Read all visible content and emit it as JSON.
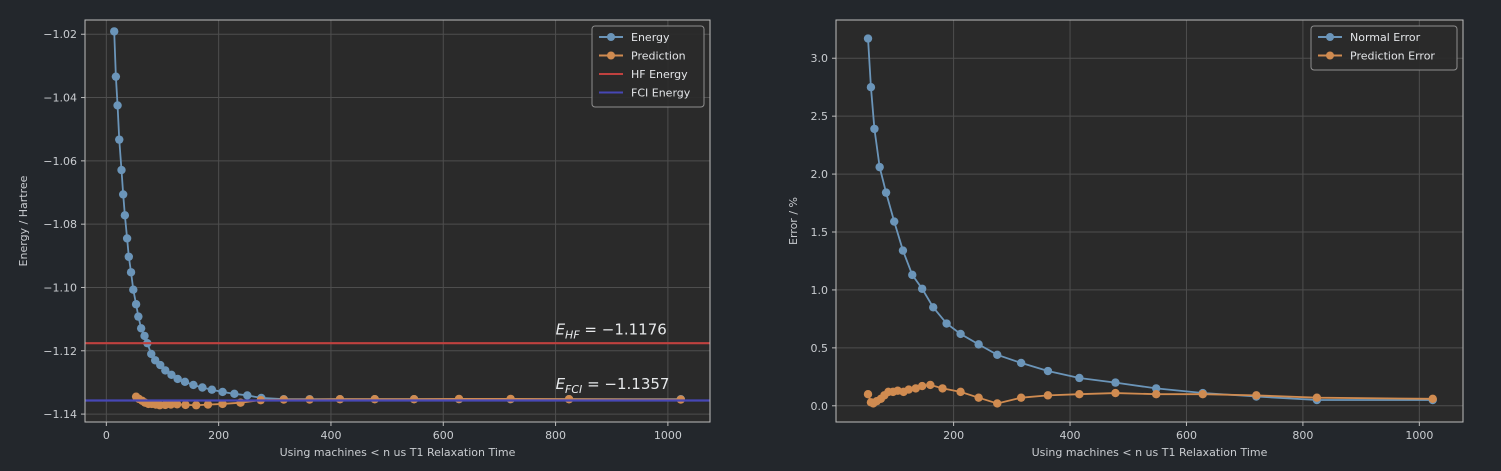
{
  "chart_data": [
    {
      "type": "line",
      "xlabel": "Using machines < n us T1 Relaxation Time",
      "ylabel": "Energy / Hartree",
      "xlim": [
        -38,
        1075
      ],
      "ylim": [
        -1.1425,
        -1.0155
      ],
      "xticks": [
        0,
        200,
        400,
        600,
        800,
        1000
      ],
      "xtick_labels": [
        "0",
        "200",
        "400",
        "600",
        "800",
        "1000"
      ],
      "yticks": [
        -1.14,
        -1.12,
        -1.1,
        -1.08,
        -1.06,
        -1.04,
        -1.02
      ],
      "ytick_labels": [
        "−1.14",
        "−1.12",
        "−1.10",
        "−1.08",
        "−1.06",
        "−1.04",
        "−1.02"
      ],
      "grid": true,
      "legend_position": "top-right",
      "series": [
        {
          "name": "Energy",
          "color": "#6b95b9",
          "marker": true,
          "x": [
            14,
            17,
            20,
            23,
            27,
            30,
            33,
            37,
            40,
            44,
            48,
            53,
            57,
            62,
            68,
            73,
            80,
            87,
            96,
            105,
            116,
            127,
            140,
            155,
            171,
            188,
            207,
            228,
            251,
            276,
            316,
            362,
            416,
            478,
            548,
            628,
            720,
            824,
            1023
          ],
          "y": [
            -1.0191,
            -1.0334,
            -1.0425,
            -1.0533,
            -1.0629,
            -1.0706,
            -1.0772,
            -1.0845,
            -1.0903,
            -1.0952,
            -1.1007,
            -1.1053,
            -1.1092,
            -1.1129,
            -1.1153,
            -1.1176,
            -1.121,
            -1.123,
            -1.1245,
            -1.1262,
            -1.1276,
            -1.1289,
            -1.1298,
            -1.1308,
            -1.1316,
            -1.1323,
            -1.133,
            -1.1336,
            -1.1341,
            -1.1349,
            -1.1353,
            -1.1353,
            -1.1353,
            -1.1353,
            -1.1353,
            -1.1353,
            -1.1353,
            -1.1353,
            -1.1353
          ]
        },
        {
          "name": "Prediction",
          "color": "#d08b50",
          "marker": true,
          "x": [
            53,
            58,
            64,
            69,
            75,
            81,
            88,
            95,
            105,
            115,
            126,
            141,
            160,
            181,
            207,
            239,
            275,
            316,
            362,
            416,
            478,
            548,
            628,
            720,
            824,
            1023
          ],
          "y": [
            -1.1345,
            -1.1352,
            -1.1358,
            -1.1364,
            -1.1368,
            -1.1368,
            -1.137,
            -1.1372,
            -1.1371,
            -1.137,
            -1.1369,
            -1.1371,
            -1.1372,
            -1.137,
            -1.1368,
            -1.1364,
            -1.1356,
            -1.1354,
            -1.1354,
            -1.1353,
            -1.1353,
            -1.1353,
            -1.1352,
            -1.1352,
            -1.1353,
            -1.1354
          ]
        },
        {
          "name": "HF Energy",
          "color": "#c0413f",
          "marker": false,
          "constant": -1.1176
        },
        {
          "name": "FCI Energy",
          "color": "#4747b5",
          "marker": false,
          "constant": -1.1357
        }
      ],
      "annotations": [
        {
          "base": "E",
          "sub": "HF",
          "text": "= −1.1176",
          "x": 800,
          "y": -1.1148
        },
        {
          "base": "E",
          "sub": "FCI",
          "text": "= −1.1357",
          "x": 800,
          "y": -1.1321
        }
      ]
    },
    {
      "type": "line",
      "xlabel": "Using machines < n us T1 Relaxation Time",
      "ylabel": "Error / %",
      "xlim": [
        -2,
        1075
      ],
      "ylim": [
        -0.14,
        3.33
      ],
      "xticks": [
        200,
        400,
        600,
        800,
        1000
      ],
      "xtick_labels": [
        "200",
        "400",
        "600",
        "800",
        "1000"
      ],
      "yticks": [
        0.0,
        0.5,
        1.0,
        1.5,
        2.0,
        2.5,
        3.0
      ],
      "ytick_labels": [
        "0.0",
        "0.5",
        "1.0",
        "1.5",
        "2.0",
        "2.5",
        "3.0"
      ],
      "grid": true,
      "legend_position": "top-right",
      "series": [
        {
          "name": "Normal Error",
          "color": "#6b95b9",
          "marker": true,
          "x": [
            53,
            58,
            64,
            73,
            84,
            98,
            113,
            129,
            146,
            165,
            188,
            212,
            243,
            275,
            316,
            362,
            416,
            478,
            548,
            628,
            720,
            824,
            1023
          ],
          "y": [
            3.17,
            2.75,
            2.39,
            2.06,
            1.84,
            1.59,
            1.34,
            1.13,
            1.01,
            0.85,
            0.71,
            0.62,
            0.53,
            0.44,
            0.37,
            0.3,
            0.24,
            0.2,
            0.15,
            0.11,
            0.08,
            0.05,
            0.05
          ]
        },
        {
          "name": "Prediction Error",
          "color": "#d08b50",
          "marker": true,
          "x": [
            53,
            58,
            62,
            68,
            75,
            81,
            88,
            96,
            104,
            114,
            123,
            135,
            146,
            160,
            181,
            212,
            243,
            275,
            316,
            362,
            416,
            478,
            548,
            628,
            720,
            824,
            1023
          ],
          "y": [
            0.1,
            0.03,
            0.02,
            0.04,
            0.06,
            0.09,
            0.12,
            0.12,
            0.13,
            0.12,
            0.14,
            0.15,
            0.17,
            0.18,
            0.15,
            0.12,
            0.07,
            0.02,
            0.07,
            0.09,
            0.1,
            0.11,
            0.1,
            0.1,
            0.09,
            0.07,
            0.06
          ]
        }
      ]
    }
  ]
}
